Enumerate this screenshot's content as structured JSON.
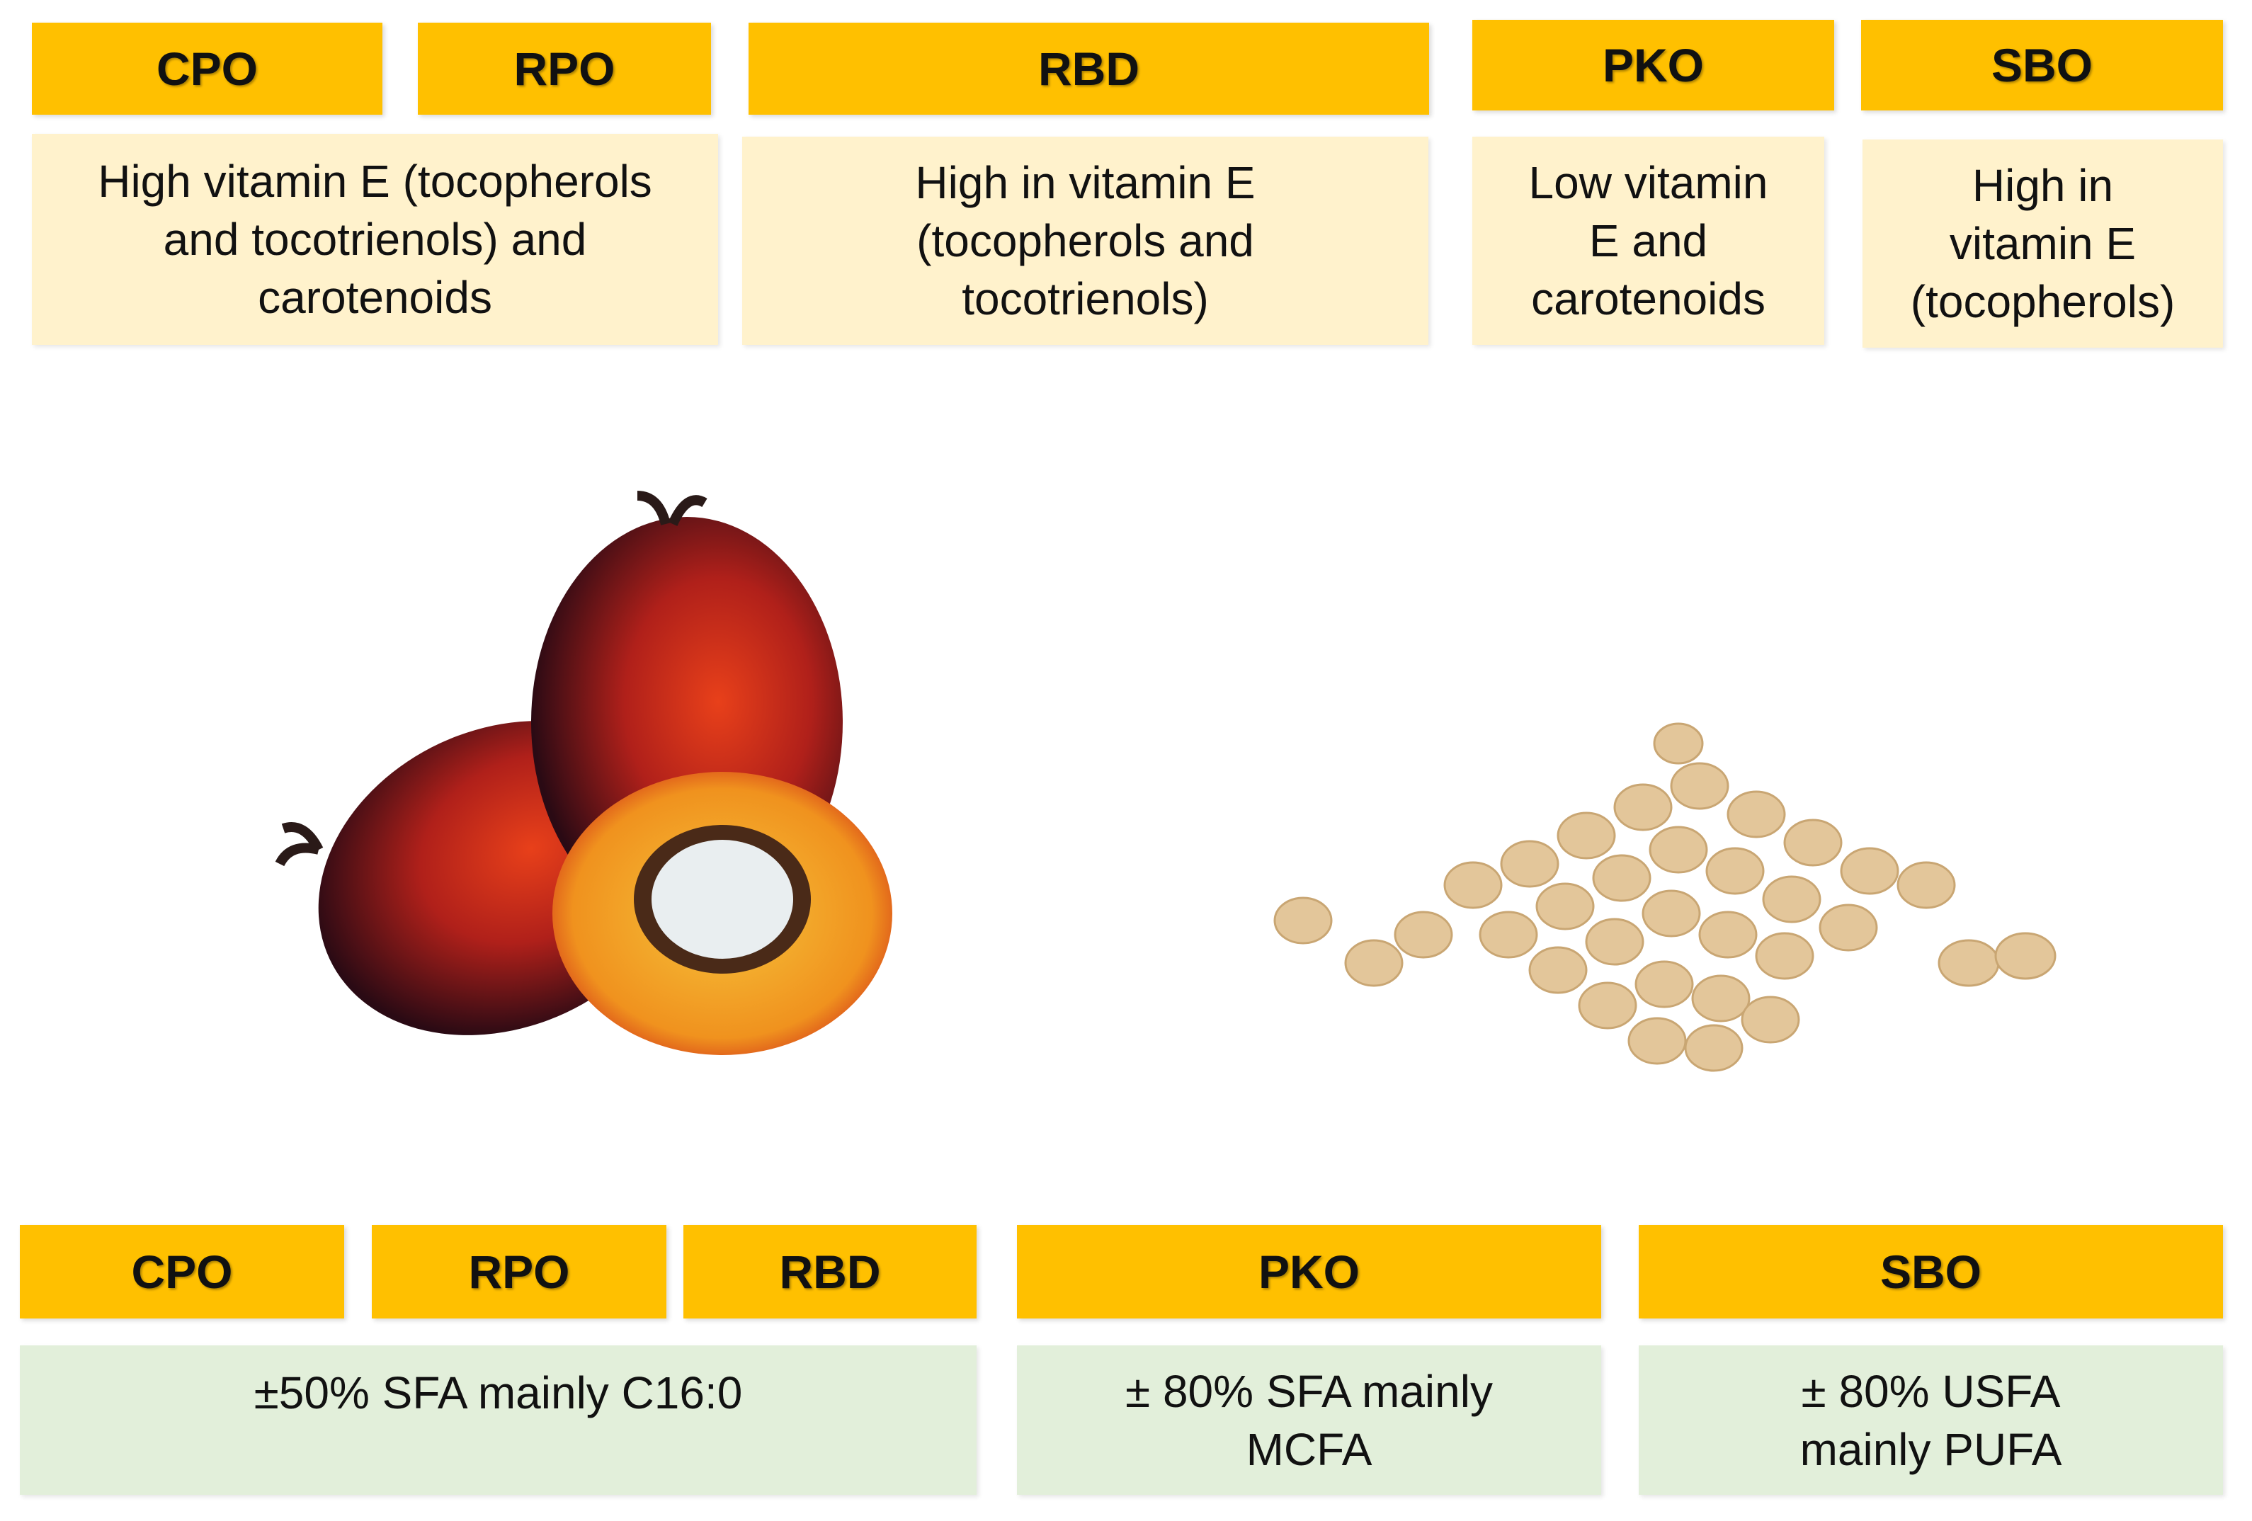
{
  "top_headers": [
    "CPO",
    "RPO",
    "RBD",
    "PKO",
    "SBO"
  ],
  "top_descriptions": [
    "High vitamin E (tocopherols and tocotrienols) and carotenoids",
    "High in vitamin E (tocopherols and tocotrienols)",
    "Low vitamin E and carotenoids",
    "High in vitamin E (tocopherols)"
  ],
  "bottom_headers": [
    "CPO",
    "RPO",
    "RBD",
    "PKO",
    "SBO"
  ],
  "bottom_descriptions": [
    "±50% SFA mainly C16:0",
    "± 80% SFA mainly MCFA",
    "± 80% USFA mainly PUFA"
  ]
}
